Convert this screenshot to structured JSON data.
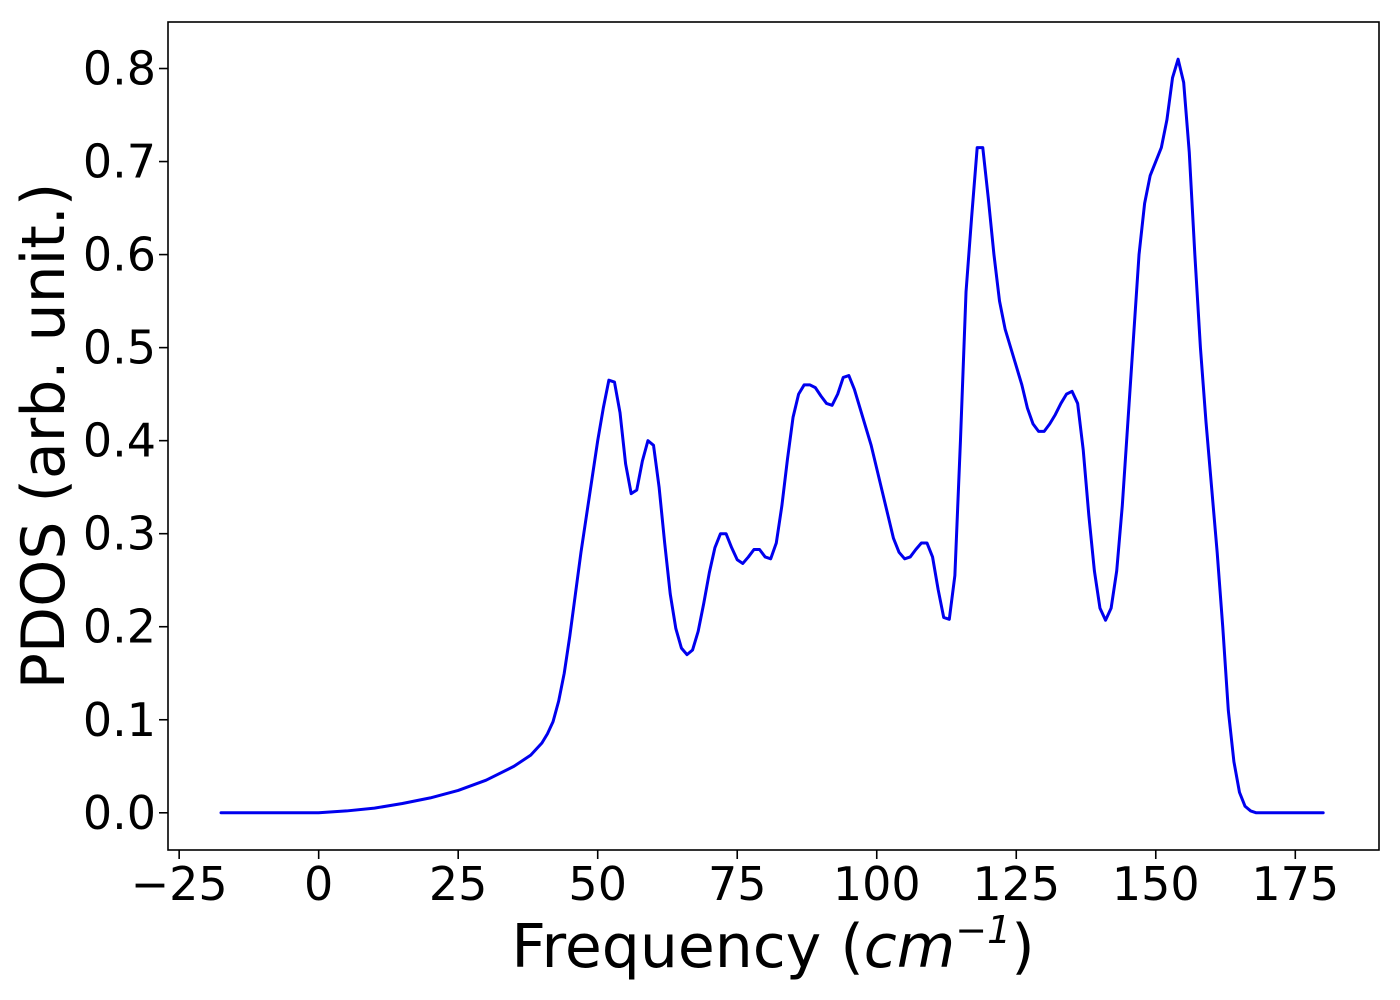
{
  "chart_data": {
    "type": "line",
    "title": "",
    "xlabel": "Frequency (",
    "xlabel_math": "cm",
    "xlabel_exp": "−1",
    "xlabel_close": ")",
    "ylabel": "PDOS (arb. unit.)",
    "xlim": [
      -27,
      190
    ],
    "ylim": [
      -0.04,
      0.85
    ],
    "xticks": [
      -25,
      0,
      25,
      50,
      75,
      100,
      125,
      150,
      175
    ],
    "xtick_labels": [
      "−25",
      "0",
      "25",
      "50",
      "75",
      "100",
      "125",
      "150",
      "175"
    ],
    "yticks": [
      0.0,
      0.1,
      0.2,
      0.3,
      0.4,
      0.5,
      0.6,
      0.7,
      0.8
    ],
    "ytick_labels": [
      "0.0",
      "0.1",
      "0.2",
      "0.3",
      "0.4",
      "0.5",
      "0.6",
      "0.7",
      "0.8"
    ],
    "grid": false,
    "legend": "none",
    "series": [
      {
        "color": "#0000ee",
        "x": [
          -17.5,
          -10,
          0,
          5,
          10,
          15,
          20,
          25,
          30,
          35,
          38,
          40,
          41,
          42,
          43,
          44,
          45,
          46,
          47,
          48,
          49,
          50,
          51,
          52,
          53,
          54,
          55,
          56,
          57,
          58,
          59,
          60,
          61,
          62,
          63,
          64,
          65,
          66,
          67,
          68,
          69,
          70,
          71,
          72,
          73,
          74,
          75,
          76,
          77,
          78,
          79,
          80,
          81,
          82,
          83,
          84,
          85,
          86,
          87,
          88,
          89,
          90,
          91,
          92,
          93,
          94,
          95,
          96,
          97,
          98,
          99,
          100,
          101,
          102,
          103,
          104,
          105,
          106,
          107,
          108,
          109,
          110,
          111,
          112,
          113,
          114,
          115,
          116,
          117,
          118,
          119,
          120,
          121,
          122,
          123,
          124,
          125,
          126,
          127,
          128,
          129,
          130,
          131,
          132,
          133,
          134,
          135,
          136,
          137,
          138,
          139,
          140,
          141,
          142,
          143,
          144,
          145,
          146,
          147,
          148,
          149,
          150,
          151,
          152,
          153,
          154,
          155,
          156,
          157,
          158,
          159,
          160,
          161,
          162,
          163,
          164,
          165,
          166,
          167,
          168,
          169,
          170,
          175,
          180
        ],
        "y": [
          0.0,
          0.0,
          0.0,
          0.002,
          0.005,
          0.01,
          0.016,
          0.024,
          0.035,
          0.05,
          0.062,
          0.075,
          0.085,
          0.098,
          0.12,
          0.15,
          0.19,
          0.235,
          0.28,
          0.32,
          0.36,
          0.4,
          0.435,
          0.465,
          0.463,
          0.43,
          0.375,
          0.343,
          0.347,
          0.378,
          0.4,
          0.395,
          0.35,
          0.29,
          0.235,
          0.198,
          0.177,
          0.17,
          0.175,
          0.195,
          0.225,
          0.258,
          0.285,
          0.3,
          0.3,
          0.285,
          0.272,
          0.268,
          0.275,
          0.283,
          0.283,
          0.275,
          0.273,
          0.29,
          0.33,
          0.38,
          0.425,
          0.45,
          0.46,
          0.46,
          0.457,
          0.448,
          0.44,
          0.438,
          0.45,
          0.468,
          0.47,
          0.455,
          0.435,
          0.415,
          0.395,
          0.37,
          0.345,
          0.32,
          0.295,
          0.28,
          0.273,
          0.275,
          0.283,
          0.29,
          0.29,
          0.275,
          0.24,
          0.21,
          0.208,
          0.255,
          0.4,
          0.56,
          0.64,
          0.715,
          0.715,
          0.66,
          0.6,
          0.55,
          0.52,
          0.5,
          0.48,
          0.46,
          0.435,
          0.418,
          0.41,
          0.41,
          0.418,
          0.428,
          0.44,
          0.45,
          0.453,
          0.44,
          0.39,
          0.32,
          0.26,
          0.22,
          0.207,
          0.22,
          0.26,
          0.33,
          0.42,
          0.51,
          0.6,
          0.655,
          0.685,
          0.7,
          0.715,
          0.745,
          0.79,
          0.81,
          0.785,
          0.71,
          0.6,
          0.5,
          0.42,
          0.35,
          0.28,
          0.2,
          0.11,
          0.055,
          0.022,
          0.007,
          0.002,
          0.0,
          0.0,
          0.0,
          0.0,
          0.0
        ]
      }
    ]
  }
}
